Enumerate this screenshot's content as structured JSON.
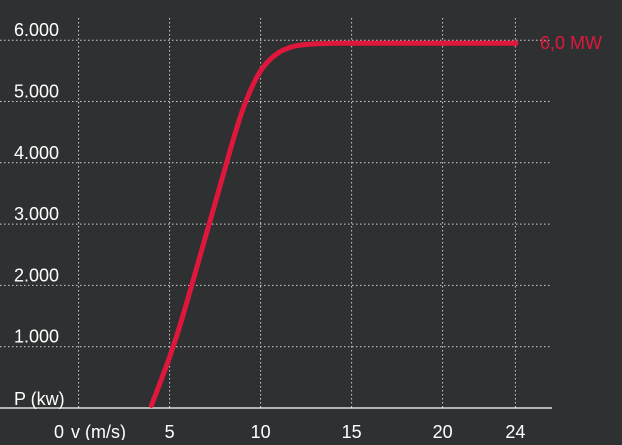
{
  "chart_data": {
    "type": "line",
    "title": "",
    "ylabel": "P (kw)",
    "xlabel": "v (m/s)",
    "x_origin_label": "0",
    "xlim": [
      0,
      24
    ],
    "ylim": [
      0,
      6000
    ],
    "x_ticks": [
      5,
      10,
      15,
      20,
      24
    ],
    "x_tick_labels": [
      "5",
      "10",
      "15",
      "20",
      "24"
    ],
    "y_ticks": [
      1000,
      2000,
      3000,
      4000,
      5000,
      6000
    ],
    "y_tick_labels": [
      "1.000",
      "2.000",
      "3.000",
      "4.000",
      "5.000",
      "6.000"
    ],
    "grid": true,
    "annotation": "6,0 MW",
    "series": [
      {
        "x": [
          4.0,
          4.5,
          5.0,
          5.5,
          6.0,
          6.5,
          7.0,
          7.5,
          8.0,
          8.5,
          9.0,
          9.5,
          10.0,
          10.5,
          11.0,
          11.5,
          12.0,
          12.5,
          13.0,
          13.5,
          14.0,
          15.0,
          16.0,
          18.0,
          20.0,
          22.0,
          24.0
        ],
        "y": [
          40,
          430,
          830,
          1280,
          1780,
          2300,
          2820,
          3340,
          3860,
          4380,
          4850,
          5220,
          5500,
          5680,
          5800,
          5870,
          5910,
          5930,
          5940,
          5945,
          5950,
          5950,
          5950,
          5950,
          5950,
          5950,
          5950
        ]
      }
    ]
  },
  "colors": {
    "background": "#2f3032",
    "line": "#e0173d",
    "text": "#ffffff",
    "grid": "#cfcfcf"
  }
}
